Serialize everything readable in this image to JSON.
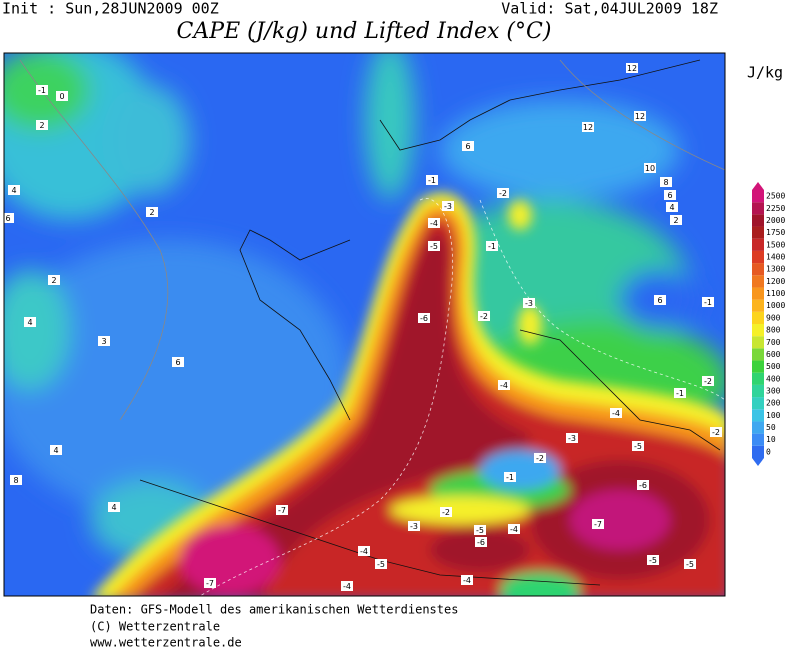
{
  "header": {
    "init": "Init : Sun,28JUN2009 00Z",
    "valid": "Valid: Sat,04JUL2009 18Z",
    "title": "CAPE (J/kg) und Lifted Index (°C)"
  },
  "legend": {
    "unit": "J/kg",
    "levels": [
      0,
      10,
      50,
      100,
      200,
      300,
      400,
      500,
      600,
      700,
      800,
      900,
      1000,
      1100,
      1200,
      1300,
      1400,
      1500,
      1750,
      2000,
      2250,
      2500
    ],
    "colors": [
      "#2f6cf0",
      "#3c8cf5",
      "#40a8f0",
      "#3cc4e6",
      "#34d0c0",
      "#30d49a",
      "#2fd470",
      "#3cd23c",
      "#7ad83a",
      "#c8e632",
      "#f5f029",
      "#fcd41e",
      "#fcb41e",
      "#f8961e",
      "#f07820",
      "#e65a22",
      "#dc3c24",
      "#c82828",
      "#aa1e1e",
      "#a0142a",
      "#b41450",
      "#d21478"
    ]
  },
  "map": {
    "contour_labels": [
      "-1",
      "0",
      "2",
      "2",
      "4",
      "6",
      "2",
      "4",
      "3",
      "6",
      "4",
      "8",
      "4",
      "12",
      "12",
      "12",
      "10",
      "8",
      "6",
      "4",
      "2",
      "6",
      "-1",
      "-3",
      "-4",
      "-5",
      "-2",
      "-1",
      "-6",
      "-2",
      "-3",
      "-4",
      "-3",
      "-4",
      "-2",
      "-1",
      "-5",
      "-6",
      "-7",
      "-7",
      "-3",
      "-2",
      "-4",
      "-5",
      "-6",
      "-4",
      "-5",
      "-7",
      "-4",
      "-4",
      "-5",
      "-5",
      "-1",
      "-2",
      "-1",
      "-2",
      "6"
    ]
  },
  "footer": {
    "lines": [
      "Daten: GFS-Modell des amerikanischen Wetterdienstes",
      "(C) Wetterzentrale",
      "www.wetterzentrale.de"
    ]
  }
}
